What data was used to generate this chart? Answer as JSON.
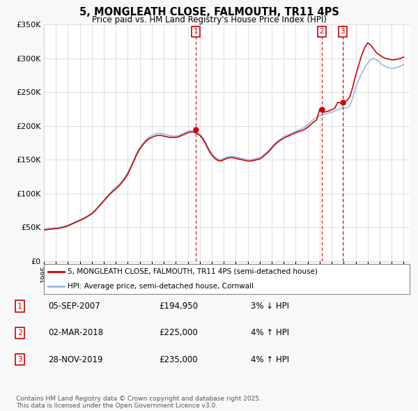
{
  "title": "5, MONGLEATH CLOSE, FALMOUTH, TR11 4PS",
  "subtitle": "Price paid vs. HM Land Registry's House Price Index (HPI)",
  "ylim": [
    0,
    350000
  ],
  "yticks": [
    0,
    50000,
    100000,
    150000,
    200000,
    250000,
    300000,
    350000
  ],
  "ytick_labels": [
    "£0",
    "£50K",
    "£100K",
    "£150K",
    "£200K",
    "£250K",
    "£300K",
    "£350K"
  ],
  "xlim_start": 1995.0,
  "xlim_end": 2025.5,
  "background_color": "#f8f8f8",
  "plot_bg_color": "#ffffff",
  "grid_color": "#dddddd",
  "red_line_color": "#cc0000",
  "blue_line_color": "#99bbdd",
  "marker_color": "#cc0000",
  "legend_label_red": "5, MONGLEATH CLOSE, FALMOUTH, TR11 4PS (semi-detached house)",
  "legend_label_blue": "HPI: Average price, semi-detached house, Cornwall",
  "transactions": [
    {
      "num": 1,
      "date": "05-SEP-2007",
      "price": "£194,950",
      "hpi": "3% ↓ HPI",
      "year": 2007.67,
      "price_val": 194950
    },
    {
      "num": 2,
      "date": "02-MAR-2018",
      "price": "£225,000",
      "hpi": "4% ↑ HPI",
      "year": 2018.17,
      "price_val": 225000
    },
    {
      "num": 3,
      "date": "28-NOV-2019",
      "price": "£235,000",
      "hpi": "4% ↑ HPI",
      "year": 2019.92,
      "price_val": 235000
    }
  ],
  "footer": "Contains HM Land Registry data © Crown copyright and database right 2025.\nThis data is licensed under the Open Government Licence v3.0.",
  "hpi_data_x": [
    1995.0,
    1995.25,
    1995.5,
    1995.75,
    1996.0,
    1996.25,
    1996.5,
    1996.75,
    1997.0,
    1997.25,
    1997.5,
    1997.75,
    1998.0,
    1998.25,
    1998.5,
    1998.75,
    1999.0,
    1999.25,
    1999.5,
    1999.75,
    2000.0,
    2000.25,
    2000.5,
    2000.75,
    2001.0,
    2001.25,
    2001.5,
    2001.75,
    2002.0,
    2002.25,
    2002.5,
    2002.75,
    2003.0,
    2003.25,
    2003.5,
    2003.75,
    2004.0,
    2004.25,
    2004.5,
    2004.75,
    2005.0,
    2005.25,
    2005.5,
    2005.75,
    2006.0,
    2006.25,
    2006.5,
    2006.75,
    2007.0,
    2007.25,
    2007.5,
    2007.75,
    2008.0,
    2008.25,
    2008.5,
    2008.75,
    2009.0,
    2009.25,
    2009.5,
    2009.75,
    2010.0,
    2010.25,
    2010.5,
    2010.75,
    2011.0,
    2011.25,
    2011.5,
    2011.75,
    2012.0,
    2012.25,
    2012.5,
    2012.75,
    2013.0,
    2013.25,
    2013.5,
    2013.75,
    2014.0,
    2014.25,
    2014.5,
    2014.75,
    2015.0,
    2015.25,
    2015.5,
    2015.75,
    2016.0,
    2016.25,
    2016.5,
    2016.75,
    2017.0,
    2017.25,
    2017.5,
    2017.75,
    2018.0,
    2018.25,
    2018.5,
    2018.75,
    2019.0,
    2019.25,
    2019.5,
    2019.75,
    2020.0,
    2020.25,
    2020.5,
    2020.75,
    2021.0,
    2021.25,
    2021.5,
    2021.75,
    2022.0,
    2022.25,
    2022.5,
    2022.75,
    2023.0,
    2023.25,
    2023.5,
    2023.75,
    2024.0,
    2024.25,
    2024.5,
    2024.75,
    2025.0
  ],
  "hpi_data_y": [
    47000,
    47500,
    48000,
    48500,
    49000,
    49500,
    50500,
    51500,
    53000,
    55000,
    57000,
    59000,
    61000,
    63000,
    65500,
    68000,
    71000,
    75000,
    80000,
    85000,
    90000,
    95000,
    100000,
    105000,
    109000,
    113000,
    118000,
    124000,
    131000,
    140000,
    150000,
    160000,
    168000,
    174000,
    179000,
    183000,
    186000,
    188000,
    189000,
    189000,
    188000,
    187000,
    186000,
    185000,
    185000,
    186000,
    188000,
    190000,
    192000,
    193000,
    193000,
    191000,
    188000,
    183000,
    175000,
    166000,
    159000,
    154000,
    151000,
    150000,
    152000,
    154000,
    155000,
    155000,
    154000,
    153000,
    152000,
    151000,
    150000,
    150000,
    151000,
    152000,
    153000,
    156000,
    160000,
    164000,
    169000,
    174000,
    178000,
    181000,
    184000,
    186000,
    188000,
    190000,
    192000,
    194000,
    196000,
    198000,
    202000,
    206000,
    210000,
    213000,
    215000,
    217000,
    218000,
    219000,
    220000,
    222000,
    224000,
    226000,
    228000,
    226000,
    230000,
    241000,
    256000,
    268000,
    278000,
    286000,
    293000,
    298000,
    300000,
    298000,
    294000,
    290000,
    288000,
    286000,
    285000,
    286000,
    287000,
    289000,
    291000
  ],
  "price_data_x": [
    1995.0,
    1995.25,
    1995.5,
    1995.75,
    1996.0,
    1996.25,
    1996.5,
    1996.75,
    1997.0,
    1997.25,
    1997.5,
    1997.75,
    1998.0,
    1998.25,
    1998.5,
    1998.75,
    1999.0,
    1999.25,
    1999.5,
    1999.75,
    2000.0,
    2000.25,
    2000.5,
    2000.75,
    2001.0,
    2001.25,
    2001.5,
    2001.75,
    2002.0,
    2002.25,
    2002.5,
    2002.75,
    2003.0,
    2003.25,
    2003.5,
    2003.75,
    2004.0,
    2004.25,
    2004.5,
    2004.75,
    2005.0,
    2005.25,
    2005.5,
    2005.75,
    2006.0,
    2006.25,
    2006.5,
    2006.75,
    2007.0,
    2007.25,
    2007.5,
    2007.75,
    2008.0,
    2008.25,
    2008.5,
    2008.75,
    2009.0,
    2009.25,
    2009.5,
    2009.75,
    2010.0,
    2010.25,
    2010.5,
    2010.75,
    2011.0,
    2011.25,
    2011.5,
    2011.75,
    2012.0,
    2012.25,
    2012.5,
    2012.75,
    2013.0,
    2013.25,
    2013.5,
    2013.75,
    2014.0,
    2014.25,
    2014.5,
    2014.75,
    2015.0,
    2015.25,
    2015.5,
    2015.75,
    2016.0,
    2016.25,
    2016.5,
    2016.75,
    2017.0,
    2017.25,
    2017.5,
    2017.75,
    2018.0,
    2018.25,
    2018.5,
    2018.75,
    2019.0,
    2019.25,
    2019.5,
    2019.75,
    2020.0,
    2020.25,
    2020.5,
    2020.75,
    2021.0,
    2021.25,
    2021.5,
    2021.75,
    2022.0,
    2022.25,
    2022.5,
    2022.75,
    2023.0,
    2023.25,
    2023.5,
    2023.75,
    2024.0,
    2024.25,
    2024.5,
    2024.75,
    2025.0
  ],
  "price_data_y": [
    46000,
    46500,
    47000,
    47500,
    48000,
    48500,
    49500,
    50500,
    52000,
    54000,
    56000,
    58000,
    60000,
    62000,
    64500,
    67000,
    70000,
    74000,
    79000,
    84000,
    89000,
    94000,
    99000,
    103000,
    107000,
    111000,
    116000,
    122000,
    129000,
    138000,
    148000,
    158000,
    166000,
    172000,
    177000,
    181000,
    183000,
    185000,
    186000,
    186000,
    185000,
    184000,
    183000,
    183000,
    183000,
    184000,
    186000,
    188000,
    190000,
    191000,
    191000,
    189000,
    186000,
    181000,
    173000,
    164000,
    157000,
    152000,
    149000,
    148000,
    150000,
    152000,
    153000,
    153000,
    152000,
    151000,
    150000,
    149000,
    148000,
    148000,
    149000,
    150000,
    151000,
    154000,
    158000,
    162000,
    167000,
    172000,
    176000,
    179000,
    182000,
    184000,
    186000,
    188000,
    190000,
    192000,
    193000,
    195000,
    198000,
    202000,
    206000,
    209000,
    225000,
    220000,
    221000,
    222000,
    224000,
    226000,
    235000,
    234000,
    237000,
    237000,
    243000,
    257000,
    275000,
    290000,
    305000,
    316000,
    323000,
    320000,
    314000,
    308000,
    305000,
    302000,
    300000,
    299000,
    298000,
    298000,
    299000,
    300000,
    302000
  ]
}
